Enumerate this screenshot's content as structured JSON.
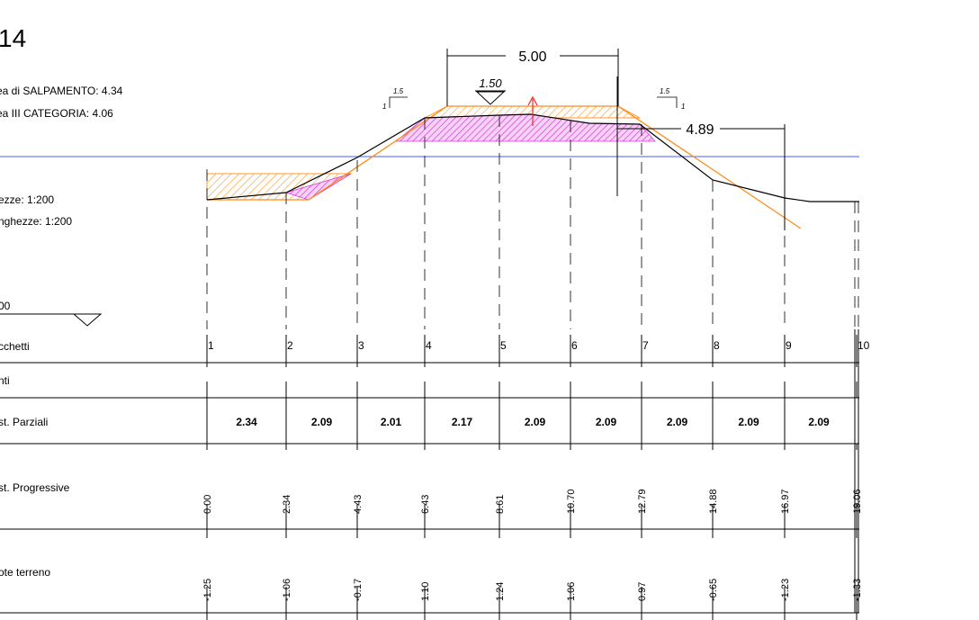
{
  "section_number": "14",
  "areas": {
    "salpamento": "ea di SALPAMENTO: 4.34",
    "third_category": "ea III CATEGORIA: 4.06"
  },
  "scales": {
    "heights": "ezze:  1:200",
    "lengths": "nghezze: 1:200"
  },
  "datum_label": "00",
  "crest": {
    "width_label": "5.00",
    "elevation_label": "1.50",
    "right_offset_label": "4.89"
  },
  "slopes": {
    "left": {
      "h": "1.5",
      "v": "1"
    },
    "right": {
      "h": "1.5",
      "v": "1"
    }
  },
  "rows": {
    "picchetti": "cchetti",
    "punti": "nti",
    "parziali": "st. Parziali",
    "progressive": "st. Progressive",
    "quote": "ote terreno"
  },
  "stations": [
    "1",
    "2",
    "3",
    "4",
    "5",
    "6",
    "7",
    "8",
    "9",
    "10"
  ],
  "partial_distances": [
    "2.34",
    "2.09",
    "2.01",
    "2.17",
    "2.09",
    "2.09",
    "2.09",
    "2.09",
    "2.09"
  ],
  "progressive_distances": [
    "0.00",
    "2.34",
    "4.43",
    "6.43",
    "8.61",
    "10.70",
    "12.79",
    "14.88",
    "16.97",
    "19.06"
  ],
  "ground_elevations": [
    "-1.25",
    "-1.06",
    "-0.17",
    "1.10",
    "1.24",
    "1.06",
    "0.97",
    "-0.65",
    "-1.23",
    "-1.33"
  ],
  "colors": {
    "water_line": "#4a5cff",
    "fill_hatch": "#ff9a2a",
    "cut_hatch": "#d63ad6",
    "design_line": "#ff8c1a",
    "arrow": "#ff2020"
  }
}
